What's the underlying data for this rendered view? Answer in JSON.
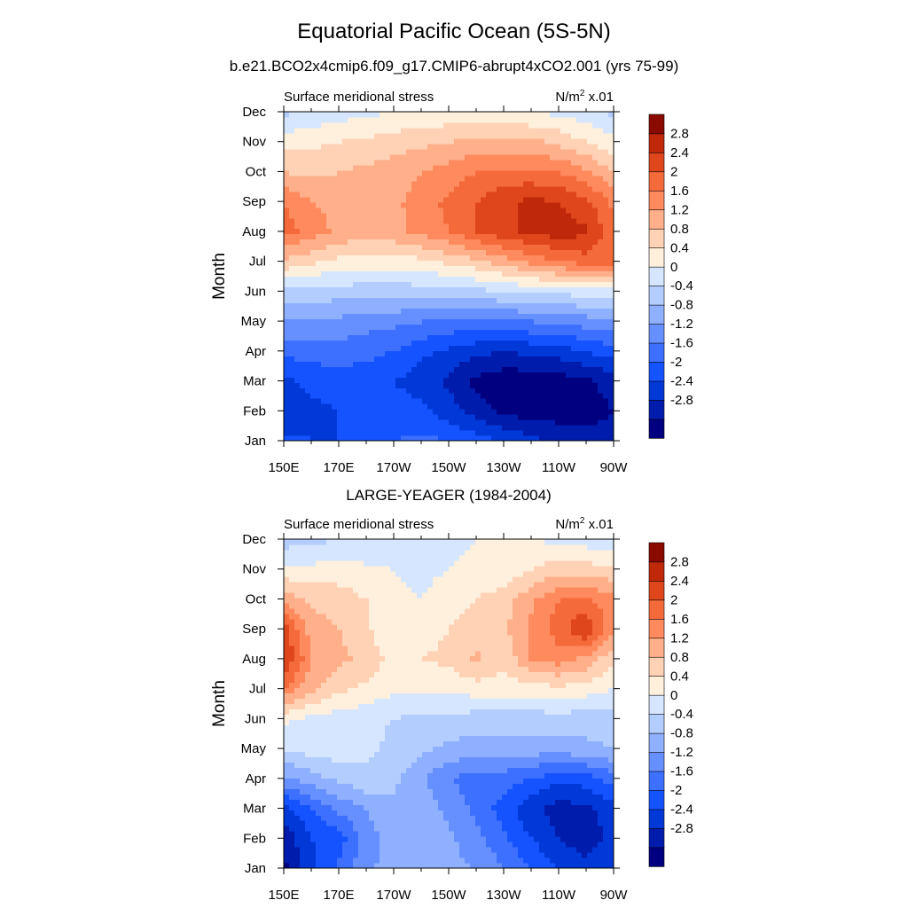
{
  "title": "Equatorial Pacific Ocean (5S-5N)",
  "subtitle": "b.e21.BCO2x4cmip6.f09_g17.CMIP6-abrupt4xCO2.001 (yrs 75-99)",
  "colors": {
    "levels": [
      "#000080",
      "#001cac",
      "#0039d8",
      "#1453ff",
      "#3d70ff",
      "#6690ff",
      "#8fb0ff",
      "#b3cdff",
      "#d6e6ff",
      "#fff0dd",
      "#ffd2b6",
      "#ffb08a",
      "#ff8a5e",
      "#f56a3a",
      "#e0461c",
      "#c0280a",
      "#8a0a00"
    ]
  },
  "chart_data": [
    {
      "type": "heatmap",
      "panel_title": "",
      "left_label": "Surface meridional stress",
      "right_label": "N/m",
      "right_label_sup": "2",
      "right_label_suffix": " x.01",
      "ylabel": "Month",
      "xlabel": "",
      "x_ticks": [
        "150E",
        "170E",
        "170W",
        "150W",
        "130W",
        "110W",
        "90W"
      ],
      "y_ticks": [
        "Jan",
        "Feb",
        "Mar",
        "Apr",
        "May",
        "Jun",
        "Jul",
        "Aug",
        "Sep",
        "Oct",
        "Nov",
        "Dec"
      ],
      "x_range": [
        "150E",
        "90W"
      ],
      "colorbar_labels": [
        "2.8",
        "2.4",
        "2",
        "1.6",
        "1.2",
        "0.8",
        "0.4",
        "0",
        "-0.4",
        "-0.8",
        "-1.2",
        "-1.6",
        "-2",
        "-2.4",
        "-2.8"
      ],
      "values": [
        [
          -1.9,
          -2.0,
          -2.0,
          -1.8,
          -1.6,
          -1.5,
          -1.6,
          -1.8,
          -2.0,
          -2.3,
          -2.5,
          -2.6,
          -2.6
        ],
        [
          -2.3,
          -2.1,
          -2.0,
          -1.8,
          -1.8,
          -1.9,
          -2.2,
          -2.6,
          -2.9,
          -3.0,
          -3.0,
          -3.0,
          -2.8
        ],
        [
          -2.1,
          -1.9,
          -1.8,
          -1.8,
          -2.0,
          -2.2,
          -2.5,
          -2.9,
          -3.1,
          -3.1,
          -3.0,
          -2.9,
          -2.6
        ],
        [
          -1.5,
          -1.4,
          -1.4,
          -1.5,
          -1.6,
          -1.9,
          -2.1,
          -2.3,
          -2.4,
          -2.3,
          -2.2,
          -2.0,
          -1.8
        ],
        [
          -0.8,
          -0.8,
          -0.9,
          -1.0,
          -1.1,
          -1.2,
          -1.3,
          -1.3,
          -1.3,
          -1.2,
          -1.1,
          -1.0,
          -0.9
        ],
        [
          -0.1,
          -0.2,
          -0.2,
          -0.2,
          -0.2,
          -0.2,
          -0.2,
          -0.1,
          0.0,
          0.1,
          0.1,
          0.2,
          0.3
        ],
        [
          1.1,
          0.9,
          0.7,
          0.6,
          0.6,
          0.7,
          0.9,
          1.1,
          1.4,
          1.7,
          2.0,
          2.2,
          2.1
        ],
        [
          2.2,
          1.8,
          1.5,
          1.4,
          1.5,
          1.7,
          2.0,
          2.4,
          2.7,
          2.9,
          3.0,
          2.9,
          2.1
        ],
        [
          2.0,
          1.6,
          1.5,
          1.4,
          1.5,
          1.8,
          2.1,
          2.4,
          2.7,
          2.9,
          2.8,
          2.5,
          1.9
        ],
        [
          1.2,
          1.1,
          1.2,
          1.3,
          1.4,
          1.6,
          1.8,
          2.0,
          2.1,
          2.1,
          2.0,
          1.7,
          1.2
        ],
        [
          0.6,
          0.7,
          0.8,
          0.9,
          1.0,
          1.1,
          1.2,
          1.3,
          1.3,
          1.3,
          1.1,
          0.8,
          0.5
        ],
        [
          -0.1,
          0.1,
          0.2,
          0.3,
          0.4,
          0.5,
          0.5,
          0.5,
          0.5,
          0.4,
          0.3,
          0.2,
          -0.1
        ]
      ]
    },
    {
      "type": "heatmap",
      "panel_title": "LARGE-YEAGER (1984-2004)",
      "left_label": "Surface meridional stress",
      "right_label": "N/m",
      "right_label_sup": "2",
      "right_label_suffix": " x.01",
      "ylabel": "Month",
      "xlabel": "",
      "x_ticks": [
        "150E",
        "170E",
        "170W",
        "150W",
        "130W",
        "110W",
        "90W"
      ],
      "y_ticks": [
        "Jan",
        "Feb",
        "Mar",
        "Apr",
        "May",
        "Jun",
        "Jul",
        "Aug",
        "Sep",
        "Oct",
        "Nov",
        "Dec"
      ],
      "x_range": [
        "150E",
        "90W"
      ],
      "colorbar_labels": [
        "2.8",
        "2.4",
        "2",
        "1.6",
        "1.2",
        "0.8",
        "0.4",
        "0",
        "-0.4",
        "-0.8",
        "-1.2",
        "-1.6",
        "-2",
        "-2.4",
        "-2.8"
      ],
      "values": [
        [
          -2.9,
          -2.1,
          -1.5,
          -0.9,
          -0.6,
          -0.5,
          -0.7,
          -0.8,
          -1.2,
          -1.6,
          -2.0,
          -2.2,
          -2.0
        ],
        [
          -2.7,
          -2.0,
          -1.8,
          -1.0,
          -0.6,
          -0.5,
          -0.7,
          -1.1,
          -1.5,
          -2.0,
          -2.4,
          -2.7,
          -2.2
        ],
        [
          -2.2,
          -1.6,
          -1.1,
          -0.8,
          -0.5,
          -0.6,
          -0.9,
          -1.3,
          -1.8,
          -2.3,
          -2.6,
          -2.5,
          -2.2
        ],
        [
          -0.9,
          -0.6,
          -0.3,
          -0.1,
          -0.3,
          -0.7,
          -1.2,
          -1.4,
          -1.4,
          -1.6,
          -1.9,
          -1.8,
          -1.4
        ],
        [
          0.0,
          0.2,
          0.2,
          0.1,
          -0.1,
          -0.3,
          -0.5,
          -0.6,
          -0.6,
          -0.6,
          -0.6,
          -0.5,
          -0.4
        ],
        [
          0.5,
          0.3,
          0.2,
          0.1,
          0.0,
          -0.1,
          -0.1,
          -0.2,
          -0.2,
          -0.2,
          -0.2,
          -0.2,
          -0.2
        ],
        [
          2.0,
          1.3,
          0.9,
          0.7,
          0.5,
          0.5,
          0.5,
          0.6,
          0.6,
          0.6,
          0.7,
          0.6,
          0.4
        ],
        [
          2.9,
          1.6,
          1.3,
          1.1,
          0.6,
          0.8,
          0.9,
          1.3,
          0.9,
          1.6,
          1.8,
          1.5,
          0.9
        ],
        [
          2.6,
          1.4,
          1.2,
          0.9,
          0.4,
          0.6,
          0.8,
          1.0,
          1.1,
          1.7,
          2.2,
          2.8,
          1.6
        ],
        [
          1.5,
          1.1,
          1.0,
          0.8,
          0.5,
          0.4,
          0.6,
          0.8,
          1.0,
          1.5,
          2.0,
          2.1,
          1.7
        ],
        [
          0.5,
          0.5,
          0.6,
          0.5,
          0.4,
          0.3,
          0.4,
          0.5,
          0.5,
          0.8,
          1.0,
          1.0,
          0.9
        ],
        [
          -0.2,
          -0.1,
          0.0,
          0.0,
          0.1,
          0.2,
          0.3,
          0.4,
          0.4,
          0.4,
          0.3,
          0.2,
          0.0
        ]
      ]
    }
  ]
}
